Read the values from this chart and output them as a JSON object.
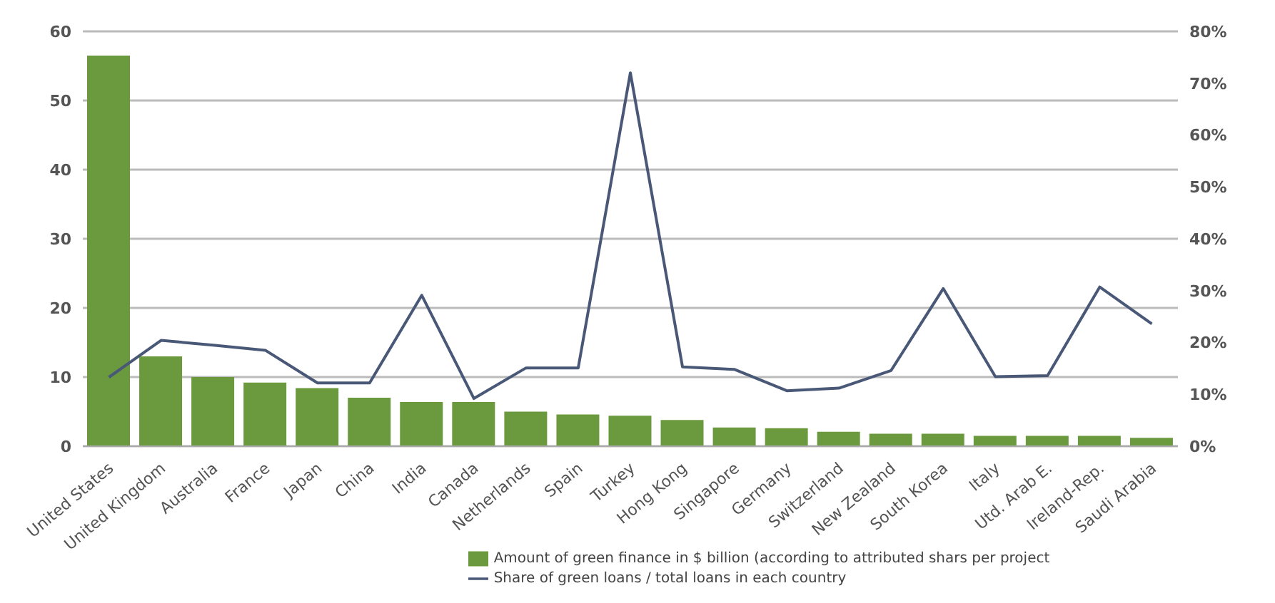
{
  "chart_data": {
    "type": "bar",
    "categories": [
      "United States",
      "United Kingdom",
      "Australia",
      "France",
      "Japan",
      "China",
      "India",
      "Canada",
      "Netherlands",
      "Spain",
      "Turkey",
      "Hong Kong",
      "Singapore",
      "Germany",
      "Switzerland",
      "New Zealand",
      "South Korea",
      "Italy",
      "Utd. Arab E.",
      "Ireland-Rep.",
      "Saudi Arabia"
    ],
    "series": [
      {
        "name": "Amount of green finance in $ billion (according to attributed shars per project",
        "color": "#6b9a3e",
        "values": [
          56.5,
          13,
          10,
          9.2,
          8.4,
          7,
          6.4,
          6.4,
          5,
          4.6,
          4.4,
          3.8,
          2.7,
          2.6,
          2.1,
          1.8,
          1.8,
          1.5,
          1.5,
          1.5,
          1.2
        ]
      },
      {
        "name": "Share of green loans / total loans in each country",
        "type": "line",
        "axis": "y2",
        "color": "#4a5878",
        "values": [
          13.3,
          20.4,
          19.5,
          18.5,
          12.2,
          12.2,
          29.1,
          9.2,
          15.1,
          15.1,
          72,
          15.3,
          14.8,
          10.7,
          11.2,
          14.6,
          30.4,
          13.4,
          13.6,
          30.7,
          23.6
        ]
      }
    ],
    "ylim": [
      0,
      60
    ],
    "yticks": [
      0,
      10,
      20,
      30,
      40,
      50,
      60
    ],
    "y2lim": [
      0,
      80
    ],
    "y2ticks": [
      {
        "value": 0,
        "label": "0%"
      },
      {
        "value": 10,
        "label": "10%"
      },
      {
        "value": 20,
        "label": "20%"
      },
      {
        "value": 30,
        "label": "30%"
      },
      {
        "value": 40,
        "label": "40%"
      },
      {
        "value": 50,
        "label": "50%"
      },
      {
        "value": 60,
        "label": "60%"
      },
      {
        "value": 70,
        "label": "70%"
      },
      {
        "value": 80,
        "label": "80%"
      }
    ],
    "grid": "y",
    "legend": "bottom",
    "marker": "none",
    "line_style": "solid"
  }
}
